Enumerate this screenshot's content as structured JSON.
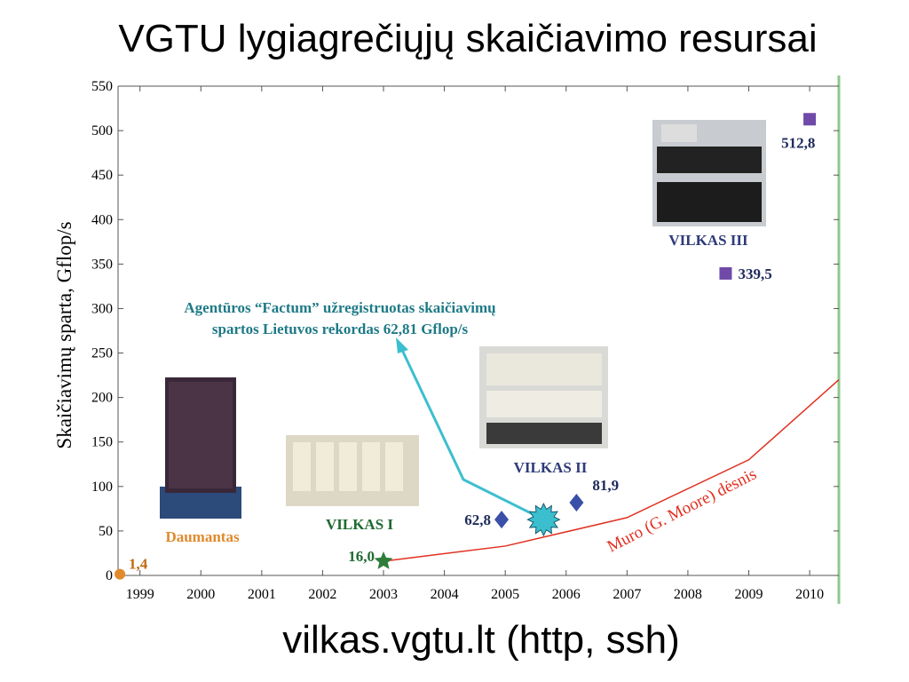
{
  "title": "VGTU lygiagrečiųjų skaičiavimo resursai",
  "footer": "vilkas.vgtu.lt (http, ssh)",
  "chart_data": {
    "type": "scatter",
    "ylabel": "Skaičiavimų sparta, Gflop/s",
    "xlim": [
      1998.64,
      2010.48
    ],
    "ylim": [
      0,
      550
    ],
    "xticks": [
      1999,
      2000,
      2001,
      2002,
      2003,
      2004,
      2005,
      2006,
      2007,
      2008,
      2009,
      2010
    ],
    "yticks": [
      0,
      50,
      100,
      150,
      200,
      250,
      300,
      350,
      400,
      450,
      500,
      550
    ],
    "series": [
      {
        "name": "Daumantas",
        "color": "#e08a2c",
        "marker": "circle",
        "x": [
          1998.67
        ],
        "values": [
          1.4
        ],
        "value_labels": [
          "1,4"
        ]
      },
      {
        "name": "VILKAS I",
        "color": "#2e7d3a",
        "marker": "star",
        "x": [
          2003.0
        ],
        "values": [
          16.0
        ],
        "value_labels": [
          "16,0"
        ]
      },
      {
        "name": "VILKAS II",
        "color": "#3a4fa8",
        "marker": "diamond",
        "x": [
          2004.94,
          2006.17
        ],
        "values": [
          62.8,
          81.9
        ],
        "value_labels": [
          "62,8",
          "81,9"
        ]
      },
      {
        "name": "VILKAS III",
        "color": "#6f4aa8",
        "marker": "square",
        "x": [
          2008.62,
          2010.0
        ],
        "values": [
          339.5,
          512.8
        ],
        "value_labels": [
          "339,5",
          "512,8"
        ]
      }
    ],
    "record": {
      "text": [
        "Agentūros “Factum” užregistruotas skaičiavimų",
        "spartos Lietuvos  rekordas 62,81 Gflop/s"
      ],
      "x": 2005.63,
      "value": 62.81,
      "color": "#3bbfcf"
    },
    "trend": {
      "name": "Muro (G. Moore) dėsnis",
      "color": "#e03020",
      "x": [
        2003,
        2005,
        2007,
        2009,
        2010.48
      ],
      "values": [
        16,
        33,
        65,
        130,
        220
      ]
    }
  }
}
